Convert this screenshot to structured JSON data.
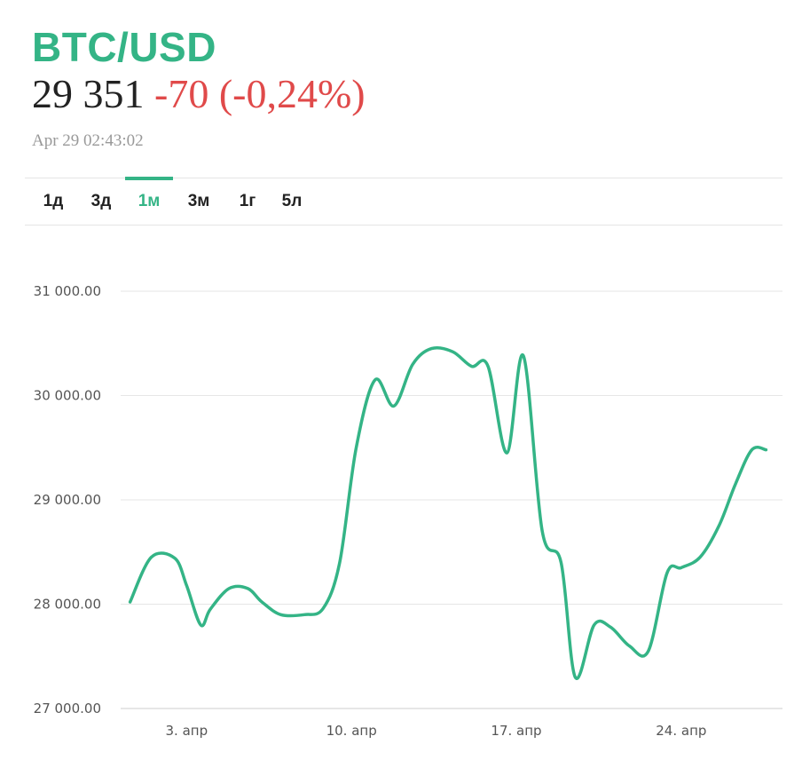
{
  "header": {
    "symbol": "BTC/USD",
    "price": "29 351",
    "change": "-70 (-0,24%)",
    "timestamp": "Apr 29 02:43:02"
  },
  "tabs": [
    {
      "label": "1д",
      "active": false
    },
    {
      "label": "3д",
      "active": false
    },
    {
      "label": "1м",
      "active": true
    },
    {
      "label": "3м",
      "active": false
    },
    {
      "label": "1г",
      "active": false
    },
    {
      "label": "5л",
      "active": false
    }
  ],
  "colors": {
    "accent": "#34b486",
    "negative": "#e04a4a",
    "line": "#34b486"
  },
  "chart_data": {
    "type": "line",
    "ylim": [
      27000,
      31000
    ],
    "y_ticks": [
      31000,
      30000,
      29000,
      28000,
      27000
    ],
    "y_tick_labels": [
      "31 000.00",
      "30 000.00",
      "29 000.00",
      "28 000.00",
      "27 000.00"
    ],
    "xlim": [
      0.2,
      28.3
    ],
    "x_ticks": [
      3,
      10,
      17,
      24
    ],
    "x_tick_labels": [
      "3. апр",
      "10. апр",
      "17. апр",
      "24. апр"
    ],
    "grid": true,
    "series": [
      {
        "x": [
          0.6,
          1.5,
          2.5,
          3.0,
          3.6,
          4.0,
          4.8,
          5.6,
          6.2,
          7.0,
          8.0,
          8.8,
          9.5,
          10.2,
          11.0,
          11.8,
          12.6,
          13.4,
          14.3,
          15.1,
          15.8,
          16.6,
          17.3,
          18.1,
          18.9,
          19.5,
          20.3,
          21.0,
          21.8,
          22.6,
          23.4,
          24.0,
          24.8,
          25.6,
          26.3,
          27.0,
          27.6
        ],
        "y": [
          28020,
          28450,
          28440,
          28180,
          27800,
          27950,
          28150,
          28150,
          28020,
          27900,
          27900,
          27960,
          28400,
          29500,
          30150,
          29900,
          30300,
          30450,
          30420,
          30280,
          30280,
          29450,
          30380,
          28700,
          28400,
          27300,
          27800,
          27780,
          27600,
          27550,
          28300,
          28350,
          28450,
          28750,
          29150,
          29480,
          29480
        ]
      }
    ]
  }
}
